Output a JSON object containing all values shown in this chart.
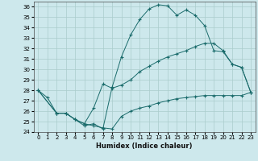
{
  "xlabel": "Humidex (Indice chaleur)",
  "bg_color": "#cde8ec",
  "line_color": "#1a6b6b",
  "grid_color": "#aacccc",
  "xlim": [
    -0.5,
    23.5
  ],
  "ylim": [
    24,
    36.5
  ],
  "yticks": [
    24,
    25,
    26,
    27,
    28,
    29,
    30,
    31,
    32,
    33,
    34,
    35,
    36
  ],
  "xticks": [
    0,
    1,
    2,
    3,
    4,
    5,
    6,
    7,
    8,
    9,
    10,
    11,
    12,
    13,
    14,
    15,
    16,
    17,
    18,
    19,
    20,
    21,
    22,
    23
  ],
  "line1_x": [
    0,
    1,
    2,
    3,
    4,
    5,
    6,
    7,
    8,
    9,
    10,
    11,
    12,
    13,
    14,
    15,
    16,
    17,
    18,
    19,
    20,
    21,
    22,
    23
  ],
  "line1_y": [
    28.0,
    27.3,
    25.8,
    25.8,
    25.2,
    24.6,
    24.8,
    24.3,
    28.3,
    31.2,
    33.3,
    34.8,
    35.8,
    36.2,
    36.1,
    35.2,
    35.7,
    35.2,
    34.2,
    31.8,
    31.7,
    30.5,
    30.2,
    27.8
  ],
  "line2_x": [
    0,
    2,
    3,
    4,
    5,
    6,
    7,
    8,
    9,
    10,
    11,
    12,
    13,
    14,
    15,
    16,
    17,
    18,
    19,
    20,
    21,
    22,
    23
  ],
  "line2_y": [
    28.0,
    25.8,
    25.8,
    25.2,
    24.8,
    26.3,
    28.6,
    28.2,
    28.5,
    29.0,
    29.8,
    30.3,
    30.8,
    31.2,
    31.5,
    31.8,
    32.2,
    32.5,
    32.5,
    31.8,
    30.5,
    30.2,
    27.8
  ],
  "line3_x": [
    0,
    2,
    3,
    4,
    5,
    6,
    7,
    8,
    9,
    10,
    11,
    12,
    13,
    14,
    15,
    16,
    17,
    18,
    19,
    20,
    21,
    22,
    23
  ],
  "line3_y": [
    28.0,
    25.8,
    25.8,
    25.2,
    24.8,
    24.6,
    24.4,
    24.3,
    25.5,
    26.0,
    26.3,
    26.5,
    26.8,
    27.0,
    27.2,
    27.3,
    27.4,
    27.5,
    27.5,
    27.5,
    27.5,
    27.5,
    27.8
  ]
}
